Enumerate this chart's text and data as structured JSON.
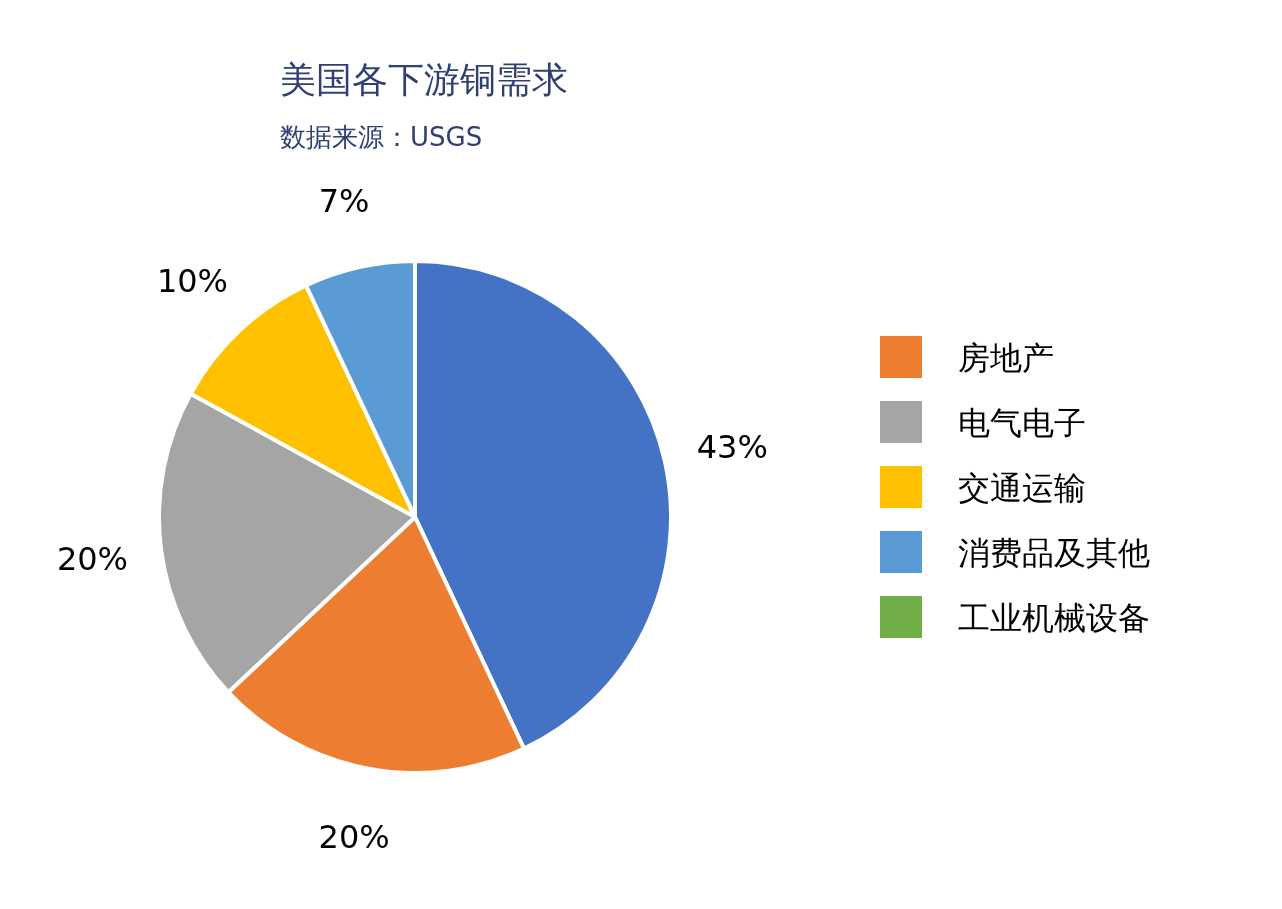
{
  "chart_data": {
    "type": "pie",
    "title": "美国各下游铜需求",
    "subtitle": "数据来源：USGS",
    "categories": [
      null,
      "房地产",
      "电气电子",
      "交通运输",
      "消费品及其他",
      "工业机械设备"
    ],
    "values": [
      43,
      20,
      20,
      10,
      7,
      0
    ],
    "colors": [
      "#4472c4",
      "#ed7d31",
      "#a5a5a5",
      "#ffc000",
      "#5b9bd5",
      "#70ad47"
    ],
    "value_labels": [
      "43%",
      "20%",
      "20%",
      "10%",
      "7%",
      null
    ],
    "legend": "right"
  }
}
